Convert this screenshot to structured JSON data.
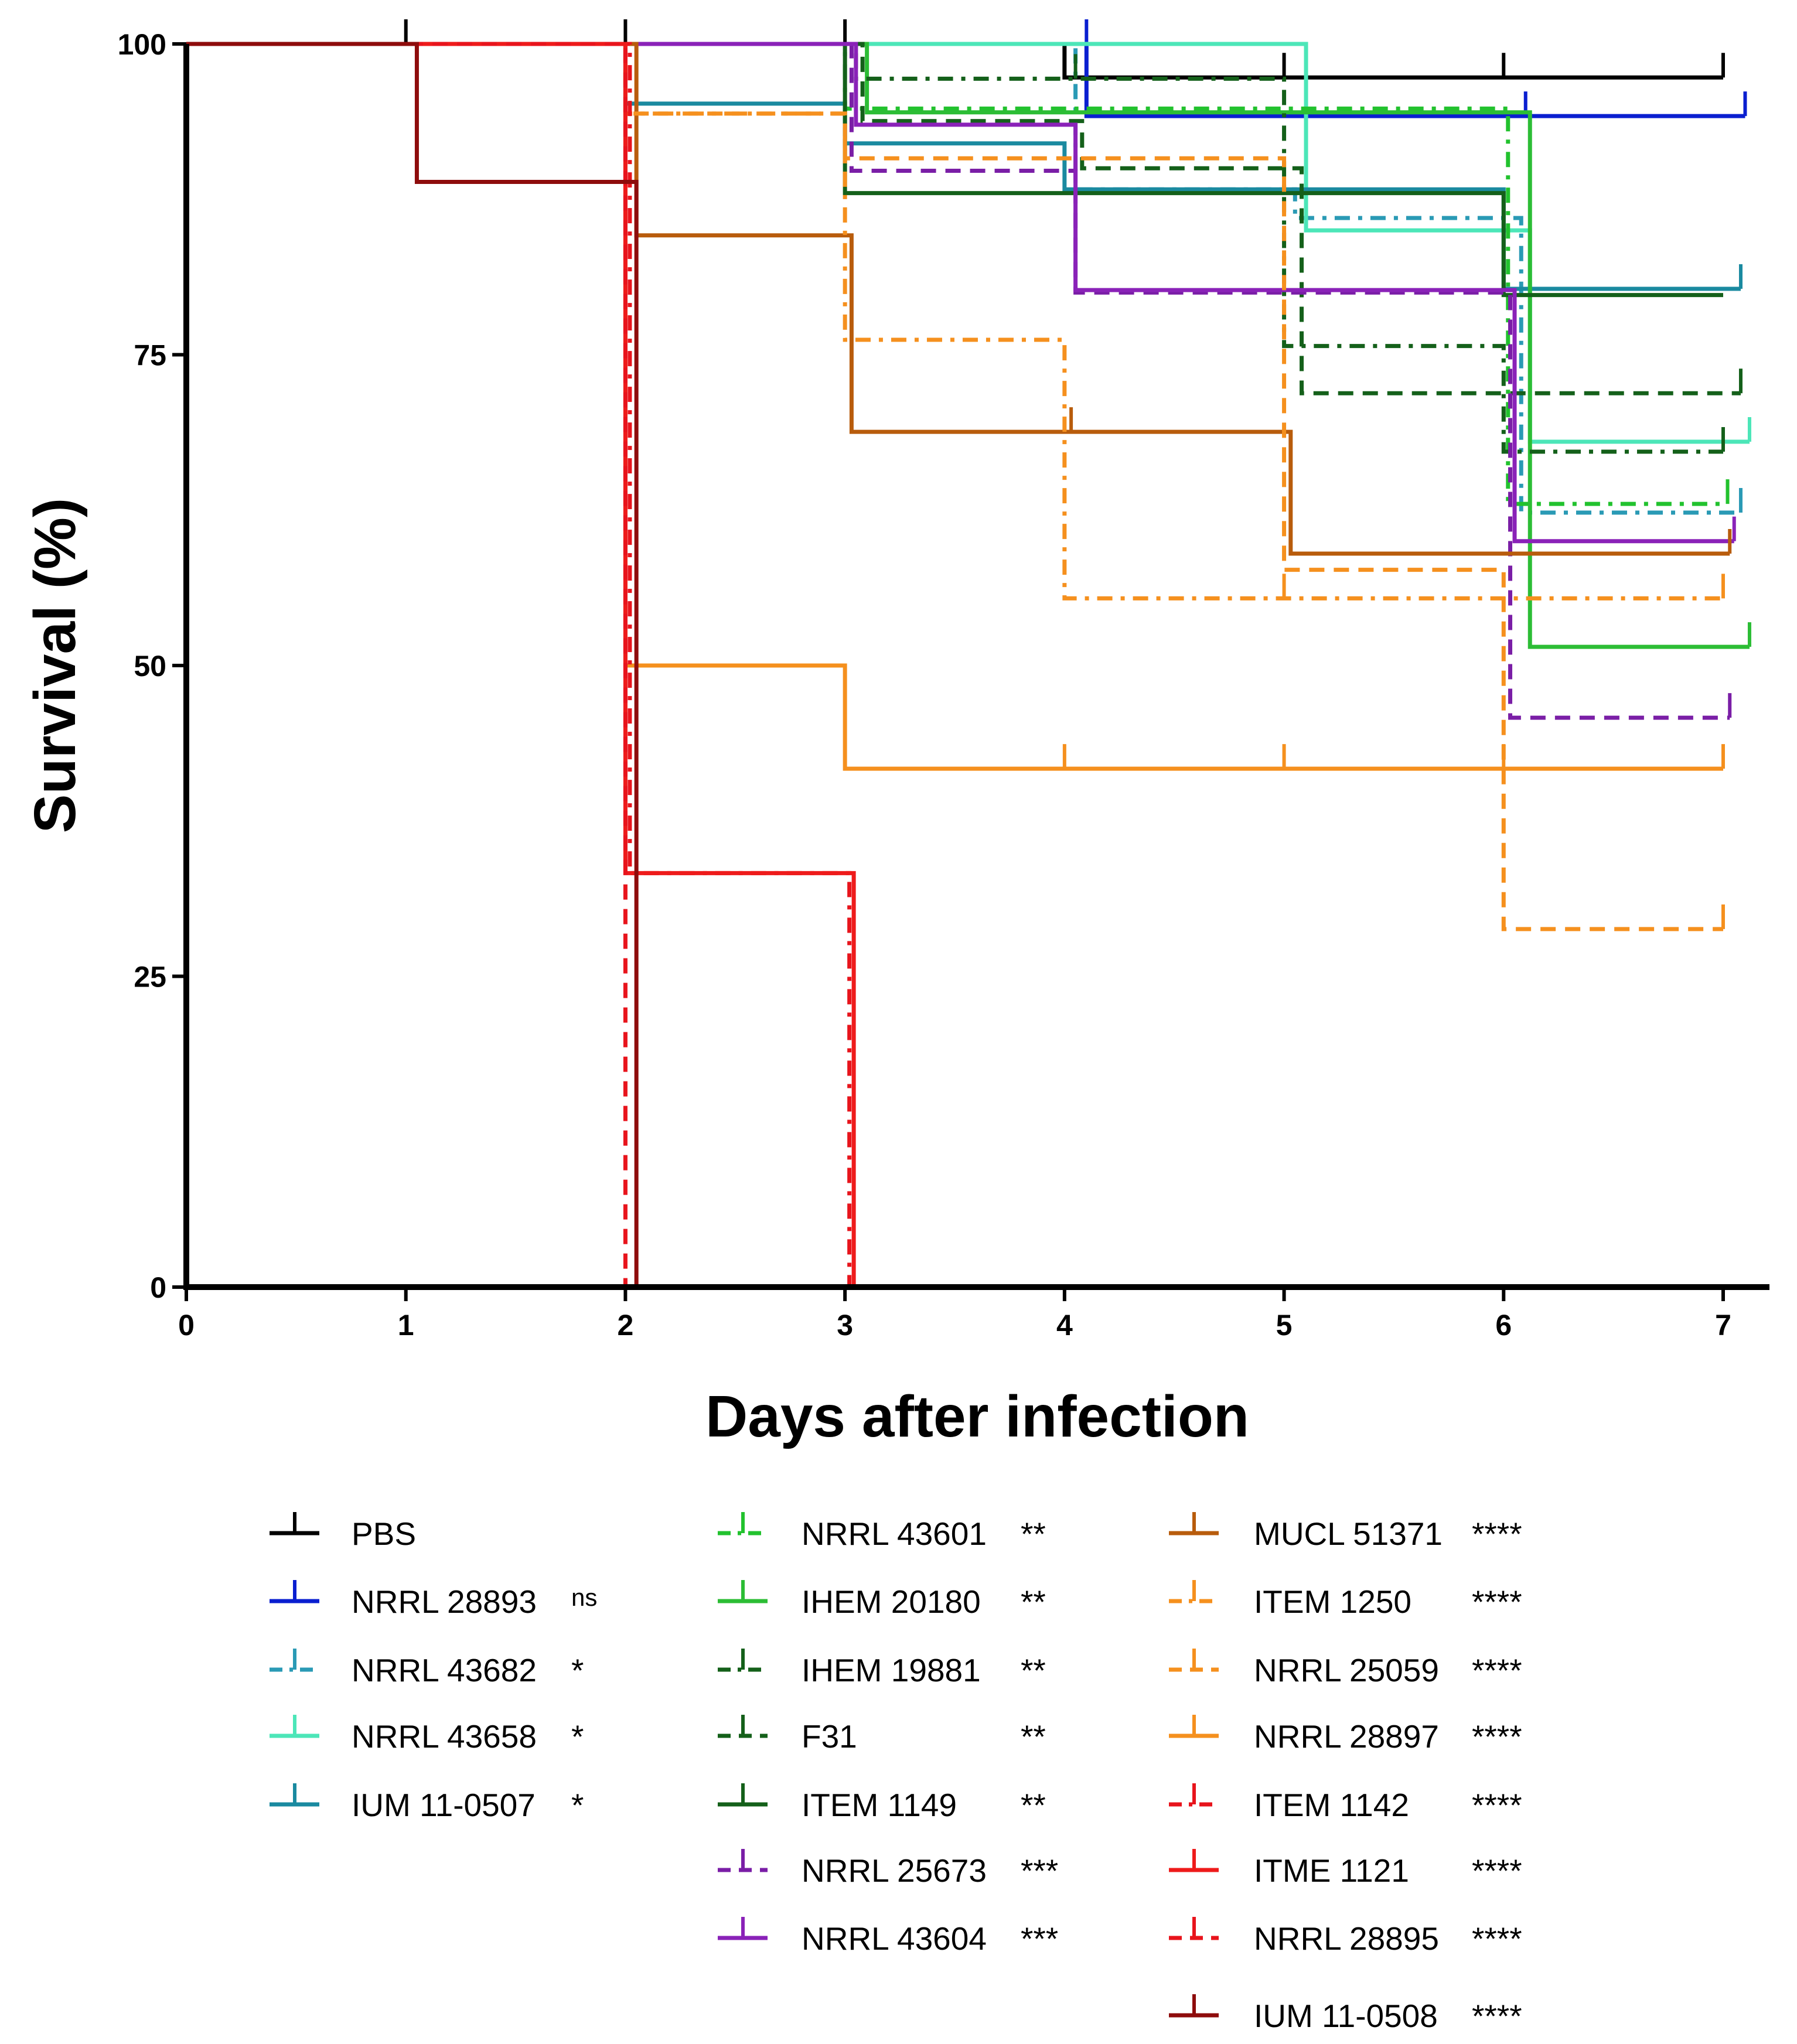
{
  "chart_data": {
    "type": "line",
    "subtype": "kaplan-meier-step",
    "title": "",
    "xlabel": "Days after infection",
    "ylabel": "Survival (%)",
    "xlim": [
      0,
      7
    ],
    "ylim": [
      0,
      100
    ],
    "xticks": [
      "0",
      "1",
      "2",
      "3",
      "4",
      "5",
      "6",
      "7"
    ],
    "yticks": [
      "0",
      "25",
      "50",
      "75",
      "100"
    ],
    "legend_position": "bottom",
    "series": [
      {
        "name": "PBS",
        "sig": "",
        "color": "#000000",
        "dash": "solid",
        "x": [
          0,
          4,
          7.0
        ],
        "y": [
          100,
          97.3,
          97.3
        ],
        "censor": [
          [
            1,
            100
          ],
          [
            2,
            100
          ],
          [
            3,
            100
          ],
          [
            5,
            97.3
          ],
          [
            6,
            97.3
          ],
          [
            7,
            97.3
          ]
        ]
      },
      {
        "name": "NRRL 28893",
        "sig": "ns",
        "color": "#0a1fd0",
        "dash": "solid",
        "x": [
          0,
          4.1,
          7.1
        ],
        "y": [
          100,
          94.2,
          94.2
        ],
        "censor": [
          [
            4.1,
            100
          ],
          [
            6.1,
            94.2
          ],
          [
            7.1,
            94.2
          ]
        ]
      },
      {
        "name": "NRRL 43682",
        "sig": "*",
        "color": "#2a9ab5",
        "dash": "dashdot",
        "x": [
          0,
          4.05,
          5.05,
          6.08,
          7.08
        ],
        "y": [
          100,
          88.3,
          86.0,
          62.3,
          62.3
        ],
        "censor": [
          [
            7.08,
            62.3
          ]
        ]
      },
      {
        "name": "NRRL 43658",
        "sig": "*",
        "color": "#4ce6b8",
        "dash": "solid",
        "x": [
          0,
          2,
          5.1,
          6.12,
          7.12
        ],
        "y": [
          100,
          100,
          85.0,
          68.0,
          68.0
        ],
        "censor": [
          [
            7.12,
            68.0
          ]
        ]
      },
      {
        "name": "IUM 11-0507",
        "sig": "*",
        "color": "#1a8aa0",
        "dash": "solid",
        "x": [
          0,
          2,
          3,
          4,
          6,
          7.08
        ],
        "y": [
          100,
          95.2,
          92.0,
          88.3,
          80.3,
          80.3
        ],
        "censor": [
          [
            7.08,
            80.3
          ]
        ]
      },
      {
        "name": "NRRL 43601",
        "sig": "**",
        "color": "#22c22e",
        "dash": "dashdot",
        "x": [
          0,
          3,
          6.02,
          7.02
        ],
        "y": [
          100,
          94.8,
          63.0,
          63.0
        ],
        "censor": [
          [
            7.02,
            63.0
          ]
        ]
      },
      {
        "name": "IHEM 20180",
        "sig": "**",
        "color": "#2cbd35",
        "dash": "solid",
        "x": [
          0,
          3.1,
          6.12,
          7.12
        ],
        "y": [
          100,
          94.5,
          51.5,
          51.5
        ],
        "censor": [
          [
            7.12,
            51.5
          ]
        ]
      },
      {
        "name": "IHEM 19881",
        "sig": "**",
        "color": "#14601a",
        "dash": "dashdot",
        "x": [
          0,
          3.05,
          5.0,
          6.0,
          7.0
        ],
        "y": [
          100,
          97.2,
          75.7,
          67.2,
          67.2
        ],
        "censor": [
          [
            4.05,
            97.2
          ],
          [
            7.0,
            67.2
          ]
        ]
      },
      {
        "name": "F31",
        "sig": "**",
        "color": "#14601a",
        "dash": "dashed",
        "x": [
          0,
          3.08,
          4.08,
          5.08,
          7.08
        ],
        "y": [
          100,
          93.8,
          90.0,
          71.9,
          71.9
        ],
        "censor": [
          [
            7.08,
            71.9
          ]
        ]
      },
      {
        "name": "ITEM 1149",
        "sig": "**",
        "color": "#14601a",
        "dash": "solid",
        "x": [
          0,
          3,
          7.0
        ],
        "y": [
          100,
          88.0,
          79.8
        ],
        "steps": [
          [
            3,
            88.0
          ],
          [
            6.0,
            79.8
          ],
          [
            7.0,
            79.8
          ]
        ],
        "censor": []
      },
      {
        "name": "NRRL 25673",
        "sig": "***",
        "color": "#7a1ea6",
        "dash": "dashed",
        "x": [
          0,
          3.03,
          4.05,
          6.03,
          7.03
        ],
        "y": [
          100,
          89.8,
          80.0,
          45.8,
          45.8
        ],
        "censor": [
          [
            7.03,
            45.8
          ]
        ]
      },
      {
        "name": "NRRL 43604",
        "sig": "***",
        "color": "#8a22b8",
        "dash": "solid",
        "x": [
          0,
          3.05,
          4.05,
          6.05,
          7.05
        ],
        "y": [
          100,
          93.5,
          80.2,
          60.0,
          60.0
        ],
        "censor": [
          [
            7.05,
            60.0
          ]
        ]
      },
      {
        "name": "MUCL 51371",
        "sig": "****",
        "color": "#b85c0c",
        "dash": "solid",
        "x": [
          0,
          2.05,
          3.03,
          5.03,
          7.03
        ],
        "y": [
          100,
          84.6,
          68.8,
          59.0,
          59.0
        ],
        "censor": [
          [
            4.03,
            68.8
          ],
          [
            7.03,
            59.0
          ]
        ]
      },
      {
        "name": "ITEM 1250",
        "sig": "****",
        "color": "#f5901e",
        "dash": "dashdot",
        "x": [
          0,
          2.0,
          3.0,
          4.0,
          7.0
        ],
        "y": [
          100,
          94.4,
          76.2,
          55.4,
          55.4
        ],
        "censor": [
          [
            5.0,
            55.4
          ],
          [
            7.0,
            55.4
          ]
        ]
      },
      {
        "name": "NRRL 25059",
        "sig": "****",
        "color": "#f5901e",
        "dash": "dashed",
        "x": [
          0,
          2.0,
          3.0,
          5.0,
          6.0,
          7.0
        ],
        "y": [
          100,
          94.4,
          90.8,
          57.7,
          28.8,
          28.8
        ],
        "censor": [
          [
            7.0,
            28.8
          ]
        ]
      },
      {
        "name": "NRRL 28897",
        "sig": "****",
        "color": "#f5901e",
        "dash": "solid",
        "x": [
          0,
          2.0,
          3.0,
          7.0
        ],
        "y": [
          100,
          50.0,
          41.7,
          41.7
        ],
        "censor": [
          [
            4.0,
            41.7
          ],
          [
            5.0,
            41.7
          ],
          [
            6.0,
            41.7
          ],
          [
            7.0,
            41.7
          ]
        ]
      },
      {
        "name": "ITEM 1142",
        "sig": "****",
        "color": "#e8141c",
        "dash": "dashdot",
        "x": [
          0,
          2.02,
          3.02
        ],
        "y": [
          100,
          33.3,
          0
        ],
        "censor": []
      },
      {
        "name": "ITME 1121",
        "sig": "****",
        "color": "#ee1b1b",
        "dash": "solid",
        "x": [
          0,
          2.0,
          3.04
        ],
        "y": [
          100,
          33.3,
          0
        ],
        "censor": []
      },
      {
        "name": "NRRL 28895",
        "sig": "****",
        "color": "#e8141c",
        "dash": "dashed",
        "x": [
          0,
          2.0
        ],
        "y": [
          100,
          0
        ],
        "censor": []
      },
      {
        "name": "IUM 11-0508",
        "sig": "****",
        "color": "#8e0c0c",
        "dash": "solid",
        "x": [
          0,
          1.05,
          2.05
        ],
        "y": [
          100,
          88.9,
          0
        ],
        "censor": []
      }
    ]
  }
}
